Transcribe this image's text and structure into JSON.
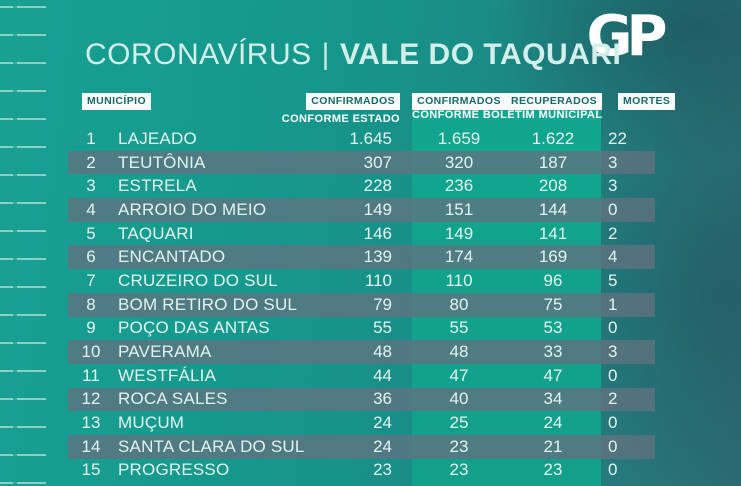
{
  "header": {
    "title_left": "CORONAVÍRUS",
    "title_separator": "|",
    "title_right": "VALE DO TAQUARI",
    "logo_text": "GP"
  },
  "columns": {
    "municipio": "MUNICÍPIO",
    "confirmados_estado": "CONFIRMADOS",
    "confirmados_estado_sub": "CONFORME ESTADO",
    "confirmados_municipal": "CONFIRMADOS",
    "recuperados": "RECUPERADOS",
    "municipal_sub": "CONFORME BOLETIM MUNICIPAL",
    "mortes": "MORTES"
  },
  "colors": {
    "background_teal": "#16988c",
    "background_dark_right": "#2d6c75",
    "band_green": "#12a28c",
    "stripe_slate": "#5c7884",
    "badge_background": "#f7fbfa",
    "badge_text": "#1a6b67",
    "table_text": "#e3f4f0",
    "title_text": "#d3efe9",
    "logo_white": "#ffffff"
  },
  "chart_data": {
    "type": "table",
    "title": "CORONAVÍRUS | VALE DO TAQUARI",
    "columns": [
      "#",
      "MUNICÍPIO",
      "CONFIRMADOS CONFORME ESTADO",
      "CONFIRMADOS CONFORME BOLETIM MUNICIPAL",
      "RECUPERADOS CONFORME BOLETIM MUNICIPAL",
      "MORTES"
    ],
    "rows": [
      {
        "rank": "1",
        "name": "LAJEADO",
        "estado": "1.645",
        "municipal": "1.659",
        "recuperados": "1.622",
        "mortes": "22"
      },
      {
        "rank": "2",
        "name": "TEUTÔNIA",
        "estado": "307",
        "municipal": "320",
        "recuperados": "187",
        "mortes": "3"
      },
      {
        "rank": "3",
        "name": "ESTRELA",
        "estado": "228",
        "municipal": "236",
        "recuperados": "208",
        "mortes": "3"
      },
      {
        "rank": "4",
        "name": "ARROIO DO MEIO",
        "estado": "149",
        "municipal": "151",
        "recuperados": "144",
        "mortes": "0"
      },
      {
        "rank": "5",
        "name": "TAQUARI",
        "estado": "146",
        "municipal": "149",
        "recuperados": "141",
        "mortes": "2"
      },
      {
        "rank": "6",
        "name": "ENCANTADO",
        "estado": "139",
        "municipal": "174",
        "recuperados": "169",
        "mortes": "4"
      },
      {
        "rank": "7",
        "name": "CRUZEIRO DO SUL",
        "estado": "110",
        "municipal": "110",
        "recuperados": "96",
        "mortes": "5"
      },
      {
        "rank": "8",
        "name": "BOM RETIRO DO SUL",
        "estado": "79",
        "municipal": "80",
        "recuperados": "75",
        "mortes": "1"
      },
      {
        "rank": "9",
        "name": "POÇO DAS ANTAS",
        "estado": "55",
        "municipal": "55",
        "recuperados": "53",
        "mortes": "0"
      },
      {
        "rank": "10",
        "name": "PAVERAMA",
        "estado": "48",
        "municipal": "48",
        "recuperados": "33",
        "mortes": "3"
      },
      {
        "rank": "11",
        "name": "WESTFÁLIA",
        "estado": "44",
        "municipal": "47",
        "recuperados": "47",
        "mortes": "0"
      },
      {
        "rank": "12",
        "name": "ROCA SALES",
        "estado": "36",
        "municipal": "40",
        "recuperados": "34",
        "mortes": "2"
      },
      {
        "rank": "13",
        "name": "MUÇUM",
        "estado": "24",
        "municipal": "25",
        "recuperados": "24",
        "mortes": "0"
      },
      {
        "rank": "14",
        "name": "SANTA CLARA DO SUL",
        "estado": "24",
        "municipal": "23",
        "recuperados": "21",
        "mortes": "0"
      },
      {
        "rank": "15",
        "name": "PROGRESSO",
        "estado": "23",
        "municipal": "23",
        "recuperados": "23",
        "mortes": "0"
      }
    ]
  }
}
